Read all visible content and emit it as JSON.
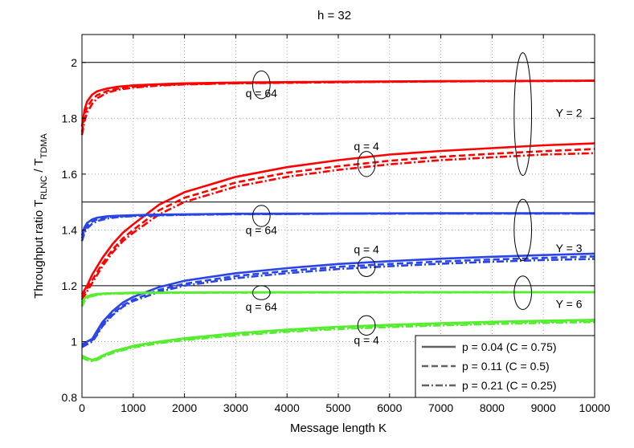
{
  "chart_data": {
    "type": "line",
    "title": "h = 32",
    "xlabel": "Message length K",
    "ylabel": {
      "prefix": "Throughput ratio T",
      "sub1": "RLNC",
      "mid": " / T",
      "sub2": "TDMA"
    },
    "xlim": [
      0,
      10000
    ],
    "ylim": [
      0.8,
      2.1
    ],
    "xticks": [
      0,
      1000,
      2000,
      3000,
      4000,
      5000,
      6000,
      7000,
      8000,
      9000,
      10000
    ],
    "yticks": [
      0.8,
      1,
      1.2,
      1.4,
      1.6,
      1.8,
      2
    ],
    "grid": true,
    "legend_position": "bottom-right",
    "reference_lines": [
      2,
      1.5,
      1.2
    ],
    "legend": [
      {
        "label": "p = 0.04 (C = 0.75)",
        "style": "solid"
      },
      {
        "label": "p = 0.11 (C = 0.5)",
        "style": "dashed"
      },
      {
        "label": "p = 0.21 (C = 0.25)",
        "style": "dashdot"
      }
    ],
    "annotations": [
      {
        "text": "q = 64",
        "x": 3500,
        "y": 1.89
      },
      {
        "text": "q = 4",
        "x": 5550,
        "y": 1.7
      },
      {
        "text": "Y = 2",
        "x": 9500,
        "y": 1.82
      },
      {
        "text": "q = 64",
        "x": 3500,
        "y": 1.4
      },
      {
        "text": "q = 4",
        "x": 5550,
        "y": 1.33
      },
      {
        "text": "Y = 3",
        "x": 9500,
        "y": 1.335
      },
      {
        "text": "q = 64",
        "x": 3500,
        "y": 1.125
      },
      {
        "text": "Y = 6",
        "x": 9500,
        "y": 1.135
      },
      {
        "text": "q = 4",
        "x": 5550,
        "y": 1.005
      }
    ],
    "ellipses": [
      {
        "cx": 3500,
        "cy": 1.92,
        "rx": 170,
        "ry": 0.05
      },
      {
        "cx": 5550,
        "cy": 1.636,
        "rx": 170,
        "ry": 0.045
      },
      {
        "cx": 8600,
        "cy": 1.815,
        "rx": 170,
        "ry": 0.22
      },
      {
        "cx": 3500,
        "cy": 1.45,
        "rx": 170,
        "ry": 0.038
      },
      {
        "cx": 5550,
        "cy": 1.268,
        "rx": 170,
        "ry": 0.035
      },
      {
        "cx": 8600,
        "cy": 1.4,
        "rx": 170,
        "ry": 0.11
      },
      {
        "cx": 3500,
        "cy": 1.175,
        "rx": 170,
        "ry": 0.025
      },
      {
        "cx": 5550,
        "cy": 1.058,
        "rx": 170,
        "ry": 0.035
      },
      {
        "cx": 8600,
        "cy": 1.175,
        "rx": 170,
        "ry": 0.06
      }
    ],
    "colors": {
      "Y2": "#ff0000",
      "Y3": "#2a45e6",
      "Y6": "#55ee2e",
      "legend_line": "#606060"
    },
    "series": [
      {
        "group": "Y2",
        "q": 64,
        "style": "solid",
        "x": [
          0,
          50,
          100,
          200,
          300,
          500,
          700,
          1000,
          1500,
          2000,
          3000,
          5000,
          7000,
          10000
        ],
        "y": [
          1.77,
          1.83,
          1.86,
          1.885,
          1.897,
          1.907,
          1.913,
          1.918,
          1.922,
          1.925,
          1.928,
          1.931,
          1.933,
          1.935
        ]
      },
      {
        "group": "Y2",
        "q": 64,
        "style": "dashed",
        "x": [
          0,
          50,
          100,
          200,
          300,
          500,
          700,
          1000,
          1500,
          2000,
          3000,
          5000,
          7000,
          10000
        ],
        "y": [
          1.75,
          1.81,
          1.84,
          1.867,
          1.883,
          1.898,
          1.906,
          1.913,
          1.919,
          1.922,
          1.926,
          1.93,
          1.932,
          1.934
        ]
      },
      {
        "group": "Y2",
        "q": 64,
        "style": "dashdot",
        "x": [
          0,
          50,
          100,
          200,
          300,
          500,
          700,
          1000,
          1500,
          2000,
          3000,
          5000,
          7000,
          10000
        ],
        "y": [
          1.74,
          1.79,
          1.82,
          1.852,
          1.872,
          1.892,
          1.902,
          1.91,
          1.917,
          1.921,
          1.925,
          1.929,
          1.932,
          1.934
        ]
      },
      {
        "group": "Y2",
        "q": 4,
        "style": "solid",
        "x": [
          0,
          100,
          200,
          400,
          600,
          800,
          1000,
          1500,
          2000,
          3000,
          4000,
          5000,
          6000,
          7000,
          8000,
          9000,
          10000
        ],
        "y": [
          1.17,
          1.2,
          1.24,
          1.3,
          1.35,
          1.39,
          1.42,
          1.49,
          1.535,
          1.59,
          1.625,
          1.65,
          1.67,
          1.683,
          1.693,
          1.703,
          1.71
        ]
      },
      {
        "group": "Y2",
        "q": 4,
        "style": "dashed",
        "x": [
          0,
          100,
          200,
          400,
          600,
          800,
          1000,
          1500,
          2000,
          3000,
          4000,
          5000,
          6000,
          7000,
          8000,
          9000,
          10000
        ],
        "y": [
          1.16,
          1.19,
          1.22,
          1.28,
          1.33,
          1.37,
          1.4,
          1.47,
          1.515,
          1.57,
          1.605,
          1.628,
          1.648,
          1.662,
          1.673,
          1.682,
          1.69
        ]
      },
      {
        "group": "Y2",
        "q": 4,
        "style": "dashdot",
        "x": [
          0,
          100,
          200,
          400,
          600,
          800,
          1000,
          1500,
          2000,
          3000,
          4000,
          5000,
          6000,
          7000,
          8000,
          9000,
          10000
        ],
        "y": [
          1.15,
          1.18,
          1.21,
          1.27,
          1.32,
          1.36,
          1.39,
          1.455,
          1.5,
          1.555,
          1.59,
          1.615,
          1.635,
          1.65,
          1.66,
          1.67,
          1.675
        ]
      },
      {
        "group": "Y3",
        "q": 64,
        "style": "solid",
        "x": [
          0,
          50,
          100,
          200,
          300,
          500,
          700,
          1000,
          1500,
          2000,
          3000,
          5000,
          7000,
          10000
        ],
        "y": [
          1.38,
          1.41,
          1.425,
          1.438,
          1.444,
          1.449,
          1.451,
          1.453,
          1.455,
          1.456,
          1.458,
          1.459,
          1.46,
          1.46
        ]
      },
      {
        "group": "Y3",
        "q": 64,
        "style": "dashed",
        "x": [
          0,
          50,
          100,
          200,
          300,
          500,
          700,
          1000,
          1500,
          2000,
          3000,
          5000,
          7000,
          10000
        ],
        "y": [
          1.37,
          1.4,
          1.415,
          1.43,
          1.438,
          1.445,
          1.448,
          1.451,
          1.453,
          1.455,
          1.457,
          1.458,
          1.459,
          1.459
        ]
      },
      {
        "group": "Y3",
        "q": 64,
        "style": "dashdot",
        "x": [
          0,
          50,
          100,
          200,
          300,
          500,
          700,
          1000,
          1500,
          2000,
          3000,
          5000,
          7000,
          10000
        ],
        "y": [
          1.36,
          1.39,
          1.405,
          1.422,
          1.432,
          1.441,
          1.446,
          1.449,
          1.452,
          1.454,
          1.456,
          1.458,
          1.459,
          1.459
        ]
      },
      {
        "group": "Y3",
        "q": 4,
        "style": "solid",
        "x": [
          0,
          100,
          200,
          300,
          400,
          600,
          800,
          1000,
          1500,
          2000,
          3000,
          4000,
          5000,
          6000,
          7000,
          8000,
          9000,
          10000
        ],
        "y": [
          0.99,
          1.0,
          1.01,
          1.04,
          1.07,
          1.11,
          1.14,
          1.16,
          1.195,
          1.218,
          1.245,
          1.263,
          1.278,
          1.288,
          1.297,
          1.304,
          1.31,
          1.315
        ]
      },
      {
        "group": "Y3",
        "q": 4,
        "style": "dashed",
        "x": [
          0,
          100,
          200,
          300,
          400,
          600,
          800,
          1000,
          1500,
          2000,
          3000,
          4000,
          5000,
          6000,
          7000,
          8000,
          9000,
          10000
        ],
        "y": [
          0.985,
          0.995,
          1.005,
          1.03,
          1.06,
          1.1,
          1.13,
          1.15,
          1.185,
          1.207,
          1.235,
          1.253,
          1.268,
          1.278,
          1.287,
          1.294,
          1.3,
          1.305
        ]
      },
      {
        "group": "Y3",
        "q": 4,
        "style": "dashdot",
        "x": [
          0,
          100,
          200,
          300,
          400,
          600,
          800,
          1000,
          1500,
          2000,
          3000,
          4000,
          5000,
          6000,
          7000,
          8000,
          9000,
          10000
        ],
        "y": [
          0.98,
          0.99,
          1.0,
          1.025,
          1.055,
          1.095,
          1.125,
          1.145,
          1.178,
          1.2,
          1.227,
          1.245,
          1.26,
          1.27,
          1.279,
          1.286,
          1.292,
          1.296
        ]
      },
      {
        "group": "Y6",
        "q": 64,
        "style": "solid",
        "x": [
          0,
          50,
          100,
          200,
          300,
          500,
          1000,
          2000,
          4000,
          7000,
          10000
        ],
        "y": [
          1.14,
          1.155,
          1.162,
          1.168,
          1.171,
          1.173,
          1.175,
          1.176,
          1.177,
          1.177,
          1.177
        ]
      },
      {
        "group": "Y6",
        "q": 64,
        "style": "dashed",
        "x": [
          0,
          50,
          100,
          200,
          300,
          500,
          1000,
          2000,
          4000,
          7000,
          10000
        ],
        "y": [
          1.13,
          1.15,
          1.158,
          1.165,
          1.169,
          1.172,
          1.174,
          1.175,
          1.176,
          1.177,
          1.177
        ]
      },
      {
        "group": "Y6",
        "q": 64,
        "style": "dashdot",
        "x": [
          0,
          50,
          100,
          200,
          300,
          500,
          1000,
          2000,
          4000,
          7000,
          10000
        ],
        "y": [
          1.125,
          1.145,
          1.155,
          1.163,
          1.167,
          1.171,
          1.173,
          1.175,
          1.176,
          1.176,
          1.177
        ]
      },
      {
        "group": "Y6",
        "q": 4,
        "style": "solid",
        "x": [
          0,
          100,
          200,
          300,
          400,
          600,
          800,
          1000,
          1500,
          2000,
          3000,
          4000,
          5000,
          6000,
          7000,
          8000,
          9000,
          10000
        ],
        "y": [
          0.95,
          0.94,
          0.935,
          0.94,
          0.95,
          0.965,
          0.975,
          0.985,
          1.0,
          1.012,
          1.03,
          1.043,
          1.053,
          1.06,
          1.066,
          1.071,
          1.075,
          1.078
        ]
      },
      {
        "group": "Y6",
        "q": 4,
        "style": "dashed",
        "x": [
          0,
          100,
          200,
          300,
          400,
          600,
          800,
          1000,
          1500,
          2000,
          3000,
          4000,
          5000,
          6000,
          7000,
          8000,
          9000,
          10000
        ],
        "y": [
          0.945,
          0.937,
          0.932,
          0.937,
          0.947,
          0.962,
          0.972,
          0.982,
          0.997,
          1.008,
          1.026,
          1.039,
          1.049,
          1.056,
          1.062,
          1.067,
          1.071,
          1.074
        ]
      },
      {
        "group": "Y6",
        "q": 4,
        "style": "dashdot",
        "x": [
          0,
          100,
          200,
          300,
          400,
          600,
          800,
          1000,
          1500,
          2000,
          3000,
          4000,
          5000,
          6000,
          7000,
          8000,
          9000,
          10000
        ],
        "y": [
          0.942,
          0.934,
          0.93,
          0.935,
          0.944,
          0.959,
          0.969,
          0.979,
          0.994,
          1.005,
          1.022,
          1.035,
          1.045,
          1.052,
          1.058,
          1.063,
          1.067,
          1.07
        ]
      }
    ]
  }
}
